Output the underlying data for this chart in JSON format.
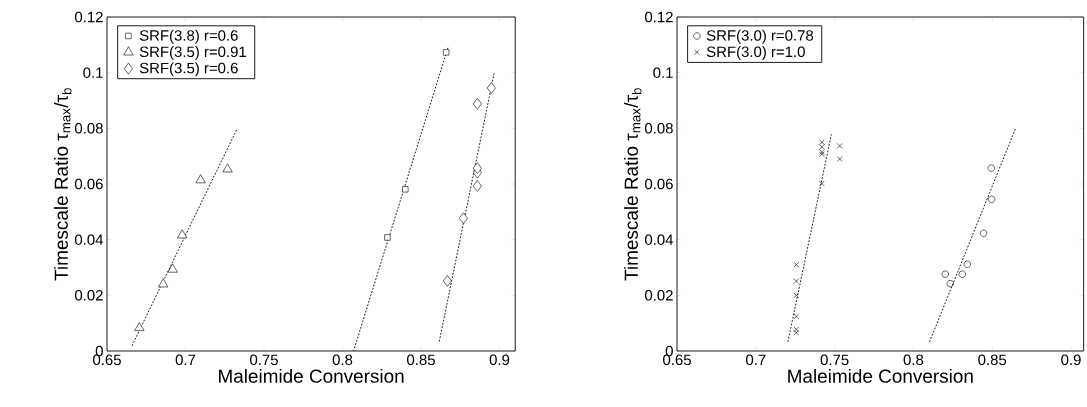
{
  "chart_data": [
    {
      "type": "scatter",
      "xlabel": "Maleimide Conversion",
      "ylabel": "Timescale Ratio  τ$_{max}$/τ$_{b}$",
      "xlim": [
        0.65,
        0.91
      ],
      "ylim": [
        0,
        0.12
      ],
      "xticks": [
        0.65,
        0.7,
        0.75,
        0.8,
        0.85,
        0.9
      ],
      "yticks": [
        0,
        0.02,
        0.04,
        0.06,
        0.08,
        0.1,
        0.12
      ],
      "grid": false,
      "legend": "top left",
      "series": [
        {
          "name": "SRF(3.8) r=0.6",
          "color": "#000000",
          "marker": "square",
          "x": [
            0.866,
            0.84,
            0.8286
          ],
          "values": [
            0.1073,
            0.0581,
            0.0408
          ]
        },
        {
          "name": "SRF(3.5) r=0.91",
          "color": "#000000",
          "marker": "triangle",
          "x": [
            0.6706,
            0.6858,
            0.6918,
            0.6979,
            0.7096,
            0.7268
          ],
          "values": [
            0.0083,
            0.024,
            0.0293,
            0.0416,
            0.0614,
            0.0653
          ]
        },
        {
          "name": "SRF(3.5) r=0.6",
          "color": "#000000",
          "marker": "diamond",
          "x": [
            0.8668,
            0.877,
            0.8859,
            0.8859,
            0.8859,
            0.8859,
            0.8948
          ],
          "values": [
            0.0252,
            0.0477,
            0.0593,
            0.0641,
            0.0657,
            0.0888,
            0.0945
          ]
        },
        {
          "type": "line",
          "color": "#000000",
          "marker": "none",
          "line_style": "dotted",
          "x": [
            0.666,
            0.733
          ],
          "values": [
            0.002,
            0.08
          ]
        },
        {
          "type": "line",
          "color": "#000000",
          "marker": "none",
          "line_style": "dotted",
          "x": [
            0.807,
            0.8674
          ],
          "values": [
            0.0,
            0.1094
          ]
        },
        {
          "type": "line",
          "color": "#000000",
          "marker": "none",
          "line_style": "dotted",
          "x": [
            0.8617,
            0.8965
          ],
          "values": [
            0.0036,
            0.0996
          ]
        }
      ]
    },
    {
      "type": "scatter",
      "xlabel": "Maleimide Conversion",
      "ylabel": "Timescale Ratio  τ$_{max}$/τ$_{b}$",
      "xlim": [
        0.65,
        0.908
      ],
      "ylim": [
        0,
        0.12
      ],
      "xticks": [
        0.65,
        0.7,
        0.75,
        0.8,
        0.85,
        0.9
      ],
      "yticks": [
        0,
        0.02,
        0.04,
        0.06,
        0.08,
        0.1,
        0.12
      ],
      "grid": false,
      "legend": "top left",
      "series": [
        {
          "name": "SRF(3.0) r=0.78",
          "color": "#000000",
          "marker": "circle",
          "x": [
            0.8202,
            0.8234,
            0.831,
            0.8342,
            0.8445,
            0.8496,
            0.8494
          ],
          "values": [
            0.0276,
            0.0242,
            0.0276,
            0.0312,
            0.0423,
            0.0545,
            0.0657
          ]
        },
        {
          "name": "SRF(3.0) r=1.0",
          "color": "#000000",
          "marker": "cross",
          "x": [
            0.7257,
            0.7257,
            0.7257,
            0.7257,
            0.7257,
            0.7257,
            0.7419,
            0.7419,
            0.7419,
            0.7419,
            0.7419,
            0.7532,
            0.7532
          ],
          "values": [
            0.0066,
            0.0078,
            0.0124,
            0.02,
            0.0251,
            0.031,
            0.0602,
            0.0707,
            0.0715,
            0.0733,
            0.075,
            0.0737,
            0.069
          ]
        },
        {
          "type": "line",
          "color": "#000000",
          "marker": "none",
          "line_style": "dotted",
          "x": [
            0.7204,
            0.7479
          ],
          "values": [
            0.0034,
            0.0777
          ]
        },
        {
          "type": "line",
          "color": "#000000",
          "marker": "none",
          "line_style": "dotted",
          "x": [
            0.8103,
            0.8649
          ],
          "values": [
            0.0034,
            0.0801
          ]
        }
      ]
    }
  ]
}
